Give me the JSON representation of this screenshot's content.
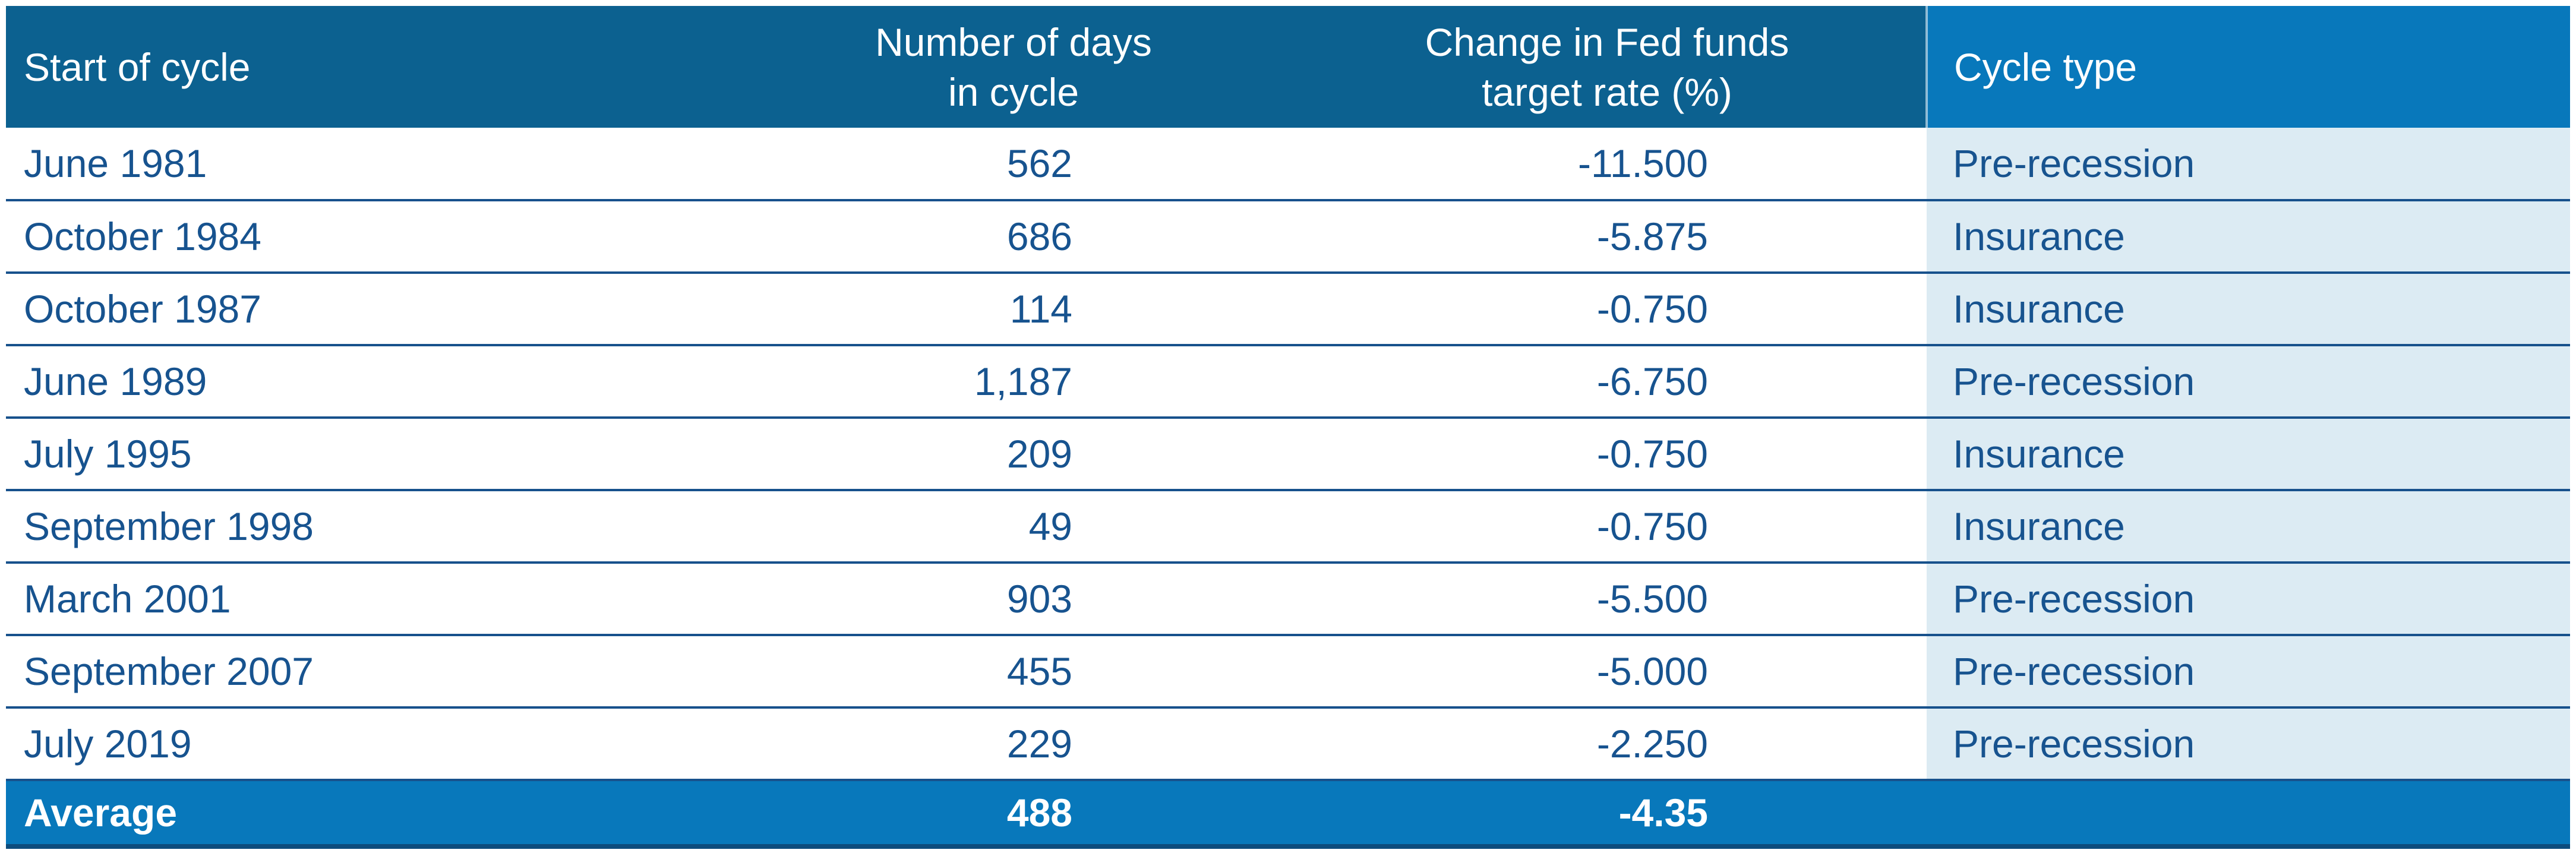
{
  "chart_data": {
    "type": "table",
    "title": "",
    "columns": [
      "Start of cycle",
      "Number of days in cycle",
      "Change in Fed funds target rate (%)",
      "Cycle type"
    ],
    "rows": [
      {
        "start_of_cycle": "June 1981",
        "number_of_days": 562,
        "change_in_rate": -11.5,
        "cycle_type": "Pre-recession"
      },
      {
        "start_of_cycle": "October 1984",
        "number_of_days": 686,
        "change_in_rate": -5.875,
        "cycle_type": "Insurance"
      },
      {
        "start_of_cycle": "October 1987",
        "number_of_days": 114,
        "change_in_rate": -0.75,
        "cycle_type": "Insurance"
      },
      {
        "start_of_cycle": "June 1989",
        "number_of_days": 1187,
        "change_in_rate": -6.75,
        "cycle_type": "Pre-recession"
      },
      {
        "start_of_cycle": "July 1995",
        "number_of_days": 209,
        "change_in_rate": -0.75,
        "cycle_type": "Insurance"
      },
      {
        "start_of_cycle": "September 1998",
        "number_of_days": 49,
        "change_in_rate": -0.75,
        "cycle_type": "Insurance"
      },
      {
        "start_of_cycle": "March 2001",
        "number_of_days": 903,
        "change_in_rate": -5.5,
        "cycle_type": "Pre-recession"
      },
      {
        "start_of_cycle": "September 2007",
        "number_of_days": 455,
        "change_in_rate": -5.0,
        "cycle_type": "Pre-recession"
      },
      {
        "start_of_cycle": "July 2019",
        "number_of_days": 229,
        "change_in_rate": -2.25,
        "cycle_type": "Pre-recession"
      }
    ],
    "average_row": {
      "label": "Average",
      "number_of_days": 488,
      "change_in_rate": -4.35
    }
  },
  "table": {
    "headers": {
      "start_of_cycle": "Start of cycle",
      "days_in_cycle": "Number of days\nin cycle",
      "rate_change": "Change in Fed funds\ntarget rate (%)",
      "cycle_type": "Cycle type"
    },
    "rows": [
      {
        "start": "June 1981",
        "days": "562",
        "rate": "-11.500",
        "type": "Pre-recession"
      },
      {
        "start": "October 1984",
        "days": "686",
        "rate": "-5.875",
        "type": "Insurance"
      },
      {
        "start": "October 1987",
        "days": "114",
        "rate": "-0.750",
        "type": "Insurance"
      },
      {
        "start": "June 1989",
        "days": "1,187",
        "rate": "-6.750",
        "type": "Pre-recession"
      },
      {
        "start": "July 1995",
        "days": "209",
        "rate": "-0.750",
        "type": "Insurance"
      },
      {
        "start": "September 1998",
        "days": "49",
        "rate": "-0.750",
        "type": "Insurance"
      },
      {
        "start": "March 2001",
        "days": "903",
        "rate": "-5.500",
        "type": "Pre-recession"
      },
      {
        "start": "September 2007",
        "days": "455",
        "rate": "-5.000",
        "type": "Pre-recession"
      },
      {
        "start": "July 2019",
        "days": "229",
        "rate": "-2.250",
        "type": "Pre-recession"
      }
    ],
    "average": {
      "label": "Average",
      "days": "488",
      "rate": "-4.35",
      "type": ""
    }
  },
  "colors": {
    "header_dark": "#0C6190",
    "header_bright": "#0878BB",
    "light_col": "#DCEBF3",
    "text_navy": "#17538F",
    "separator": "#17518C",
    "bottom_border": "#0D4C7D",
    "page_bg": "#FFFFFF"
  }
}
